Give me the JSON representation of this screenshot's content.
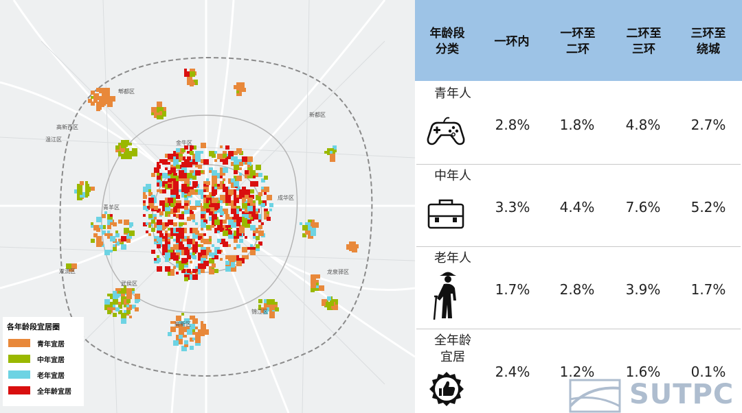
{
  "map": {
    "districts": [
      {
        "id": "pixian",
        "label": "郫都区"
      },
      {
        "id": "xindu",
        "label": "新都区"
      },
      {
        "id": "gaoxinxi",
        "label": "高新西区"
      },
      {
        "id": "wenjiang",
        "label": "温江区"
      },
      {
        "id": "jinniu",
        "label": "金牛区"
      },
      {
        "id": "qingyang",
        "label": "青羊区"
      },
      {
        "id": "chenghua",
        "label": "成华区"
      },
      {
        "id": "shuangliu",
        "label": "双流区"
      },
      {
        "id": "wuhou",
        "label": "武侯区"
      },
      {
        "id": "jinjiang",
        "label": "锦江区"
      },
      {
        "id": "longquanyi",
        "label": "龙泉驿区"
      },
      {
        "id": "gaoxin",
        "label": "高新区"
      }
    ],
    "legend": {
      "title": "各年龄段宜居圈",
      "items": [
        {
          "label": "青年宜居",
          "color": "#e8883a"
        },
        {
          "label": "中年宜居",
          "color": "#9ab800"
        },
        {
          "label": "老年宜居",
          "color": "#6dd3e3"
        },
        {
          "label": "全年龄宜居",
          "color": "#d90f0f"
        }
      ]
    }
  },
  "table": {
    "header": {
      "col0": [
        "年龄段",
        "分类"
      ],
      "col1": [
        "一环内"
      ],
      "col2": [
        "一环至",
        "二环"
      ],
      "col3": [
        "二环至",
        "三环"
      ],
      "col4": [
        "三环至",
        "绕城"
      ]
    },
    "rows": [
      {
        "label": [
          "青年人"
        ],
        "icon": "gamepad-icon",
        "values": [
          "2.8%",
          "1.8%",
          "4.8%",
          "2.7%"
        ]
      },
      {
        "label": [
          "中年人"
        ],
        "icon": "briefcase-icon",
        "values": [
          "3.3%",
          "4.4%",
          "7.6%",
          "5.2%"
        ]
      },
      {
        "label": [
          "老年人"
        ],
        "icon": "elderly-person-icon",
        "values": [
          "1.7%",
          "2.8%",
          "3.9%",
          "1.7%"
        ]
      },
      {
        "label": [
          "全年龄",
          "宜居"
        ],
        "icon": "thumbs-up-badge-icon",
        "values": [
          "2.4%",
          "1.2%",
          "1.6%",
          "0.1%"
        ]
      }
    ]
  },
  "watermark": {
    "text": "SUTPC"
  }
}
